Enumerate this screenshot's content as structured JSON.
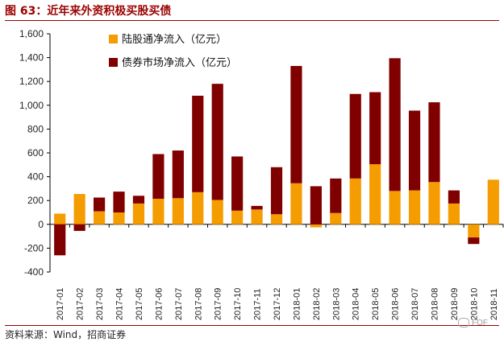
{
  "header": {
    "title": "图 63：近年来外资积极买股买债"
  },
  "footer": {
    "source": "资料来源：Wind，招商证券",
    "watermark": "FOF"
  },
  "colors": {
    "stock": "#f59c00",
    "bond": "#800000",
    "title": "#9b0000"
  },
  "chart_data": {
    "type": "bar",
    "stacked": true,
    "categories": [
      "2017-01",
      "2017-02",
      "2017-03",
      "2017-04",
      "2017-05",
      "2017-06",
      "2017-07",
      "2017-08",
      "2017-09",
      "2017-10",
      "2017-11",
      "2017-12",
      "2018-01",
      "2018-02",
      "2018-03",
      "2018-04",
      "2018-05",
      "2018-06",
      "2018-07",
      "2018-08",
      "2018-09",
      "2018-10",
      "2018-11"
    ],
    "series": [
      {
        "name": "陆股通净流入（亿元）",
        "color": "#f59c00",
        "values": [
          90,
          255,
          110,
          100,
          175,
          215,
          220,
          270,
          205,
          115,
          125,
          85,
          345,
          -25,
          95,
          385,
          505,
          280,
          285,
          355,
          175,
          -110,
          375
        ]
      },
      {
        "name": "债券市场净流入（亿元）",
        "color": "#800000",
        "values": [
          -260,
          -55,
          115,
          175,
          65,
          375,
          400,
          810,
          975,
          455,
          30,
          395,
          985,
          320,
          290,
          710,
          605,
          1115,
          670,
          670,
          110,
          -55,
          0
        ]
      }
    ],
    "ylim": [
      -400,
      1600
    ],
    "yticks": [
      -400,
      -200,
      0,
      200,
      400,
      600,
      800,
      1000,
      1200,
      1400,
      1600
    ],
    "ytick_labels": [
      "-400",
      "-200",
      "0",
      "200",
      "400",
      "600",
      "800",
      "1,000",
      "1,200",
      "1,400",
      "1,600"
    ],
    "legend": "top-left",
    "grid": false
  }
}
